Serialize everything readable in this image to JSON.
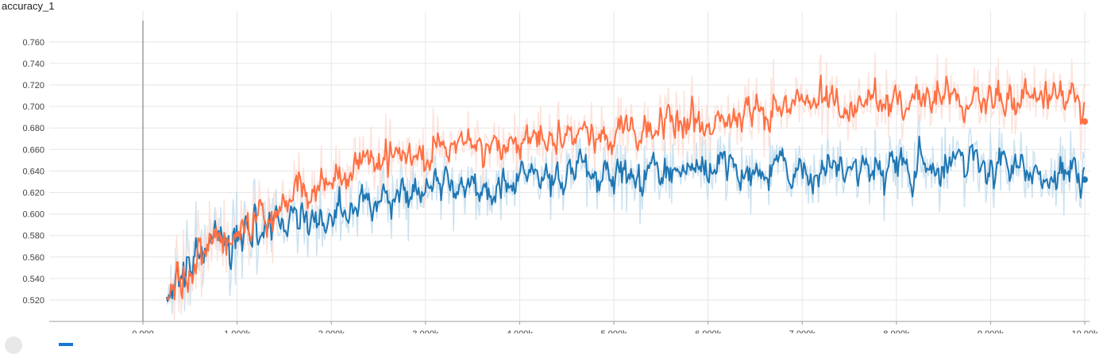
{
  "header": {
    "title": "accuracy_1"
  },
  "colors": {
    "blue_raw": "#c6dfee",
    "blue_smoothed": "#1f77b4",
    "orange_raw": "#fde0d8",
    "orange_smoothed": "#ff7043",
    "grid": "#e6e6e6",
    "zero_line": "#9e9e9e"
  },
  "chart_data": {
    "type": "line",
    "title": "accuracy_1",
    "xlabel": "",
    "ylabel": "",
    "xlim": [
      -1.0,
      10.1
    ],
    "ylim": [
      0.501,
      0.78
    ],
    "grid": true,
    "x_ticks": [
      0,
      1000,
      2000,
      3000,
      4000,
      5000,
      6000,
      7000,
      8000,
      9000,
      10000
    ],
    "x_tick_labels": [
      "0.000",
      "1.000k",
      "2.000k",
      "3.000k",
      "4.000k",
      "5.000k",
      "6.000k",
      "7.000k",
      "8.000k",
      "9.000k",
      "10.00k"
    ],
    "y_ticks": [
      0.52,
      0.54,
      0.56,
      0.58,
      0.6,
      0.62,
      0.64,
      0.66,
      0.68,
      0.7,
      0.72,
      0.74,
      0.76
    ],
    "y_tick_labels": [
      "0.520",
      "0.540",
      "0.560",
      "0.580",
      "0.600",
      "0.620",
      "0.640",
      "0.660",
      "0.680",
      "0.700",
      "0.720",
      "0.740",
      "0.760"
    ],
    "series": [
      {
        "color": "#1f77b4",
        "x": [
          250,
          500,
          750,
          1000,
          1250,
          1500,
          1750,
          2000,
          2250,
          2500,
          2750,
          3000,
          3250,
          3500,
          3750,
          4000,
          4250,
          4500,
          4750,
          5000,
          5250,
          5500,
          5750,
          6000,
          6250,
          6500,
          6750,
          7000,
          7250,
          7500,
          7750,
          8000,
          8250,
          8500,
          8750,
          9000,
          9250,
          9500,
          9750,
          10000
        ],
        "values": [
          0.53,
          0.55,
          0.575,
          0.585,
          0.59,
          0.595,
          0.585,
          0.6,
          0.61,
          0.615,
          0.615,
          0.62,
          0.625,
          0.63,
          0.625,
          0.64,
          0.635,
          0.635,
          0.64,
          0.64,
          0.64,
          0.635,
          0.645,
          0.645,
          0.64,
          0.64,
          0.645,
          0.64,
          0.64,
          0.64,
          0.64,
          0.645,
          0.645,
          0.64,
          0.645,
          0.645,
          0.645,
          0.64,
          0.635,
          0.632
        ]
      },
      {
        "color": "#ff7043",
        "x": [
          250,
          500,
          750,
          1000,
          1250,
          1500,
          1750,
          2000,
          2250,
          2500,
          2750,
          3000,
          3250,
          3500,
          3750,
          4000,
          4250,
          4500,
          4750,
          5000,
          5250,
          5500,
          5750,
          6000,
          6250,
          6500,
          6750,
          7000,
          7250,
          7500,
          7750,
          8000,
          8250,
          8500,
          8750,
          9000,
          9250,
          9500,
          9750,
          10000
        ],
        "values": [
          0.525,
          0.55,
          0.58,
          0.59,
          0.6,
          0.615,
          0.625,
          0.635,
          0.645,
          0.65,
          0.655,
          0.655,
          0.66,
          0.665,
          0.665,
          0.67,
          0.67,
          0.67,
          0.675,
          0.675,
          0.68,
          0.68,
          0.685,
          0.69,
          0.69,
          0.695,
          0.695,
          0.7,
          0.7,
          0.7,
          0.705,
          0.705,
          0.705,
          0.71,
          0.71,
          0.71,
          0.71,
          0.71,
          0.71,
          0.686
        ]
      }
    ]
  }
}
